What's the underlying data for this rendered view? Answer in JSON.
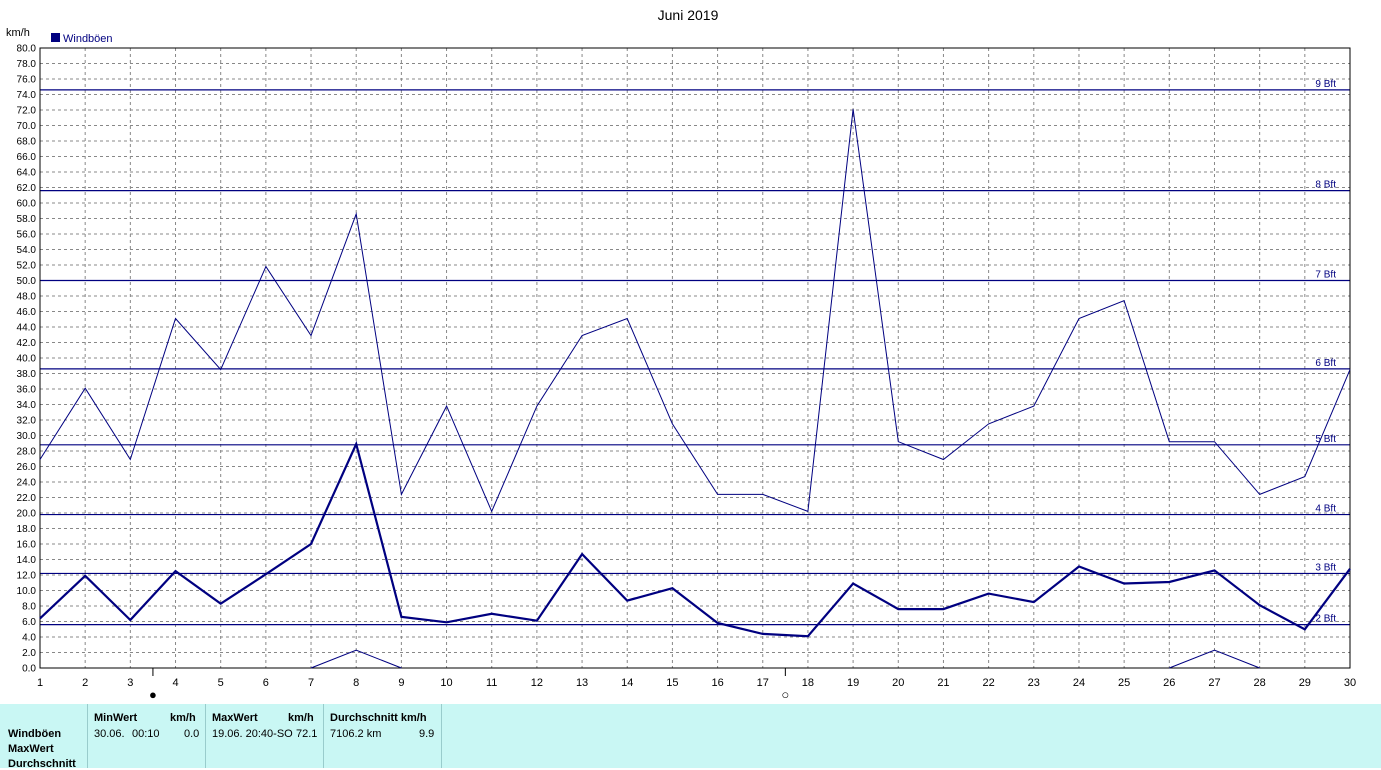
{
  "chart_data": {
    "type": "line",
    "title": "Juni 2019",
    "ylabel": "km/h",
    "legend": "Windböen",
    "ylim": [
      0,
      80
    ],
    "ytick_step": 2,
    "x": [
      1,
      2,
      3,
      4,
      5,
      6,
      7,
      8,
      9,
      10,
      11,
      12,
      13,
      14,
      15,
      16,
      17,
      18,
      19,
      20,
      21,
      22,
      23,
      24,
      25,
      26,
      27,
      28,
      29,
      30
    ],
    "series": [
      {
        "values": [
          26.9,
          36.1,
          26.9,
          45.1,
          38.5,
          51.8,
          42.9,
          58.6,
          22.4,
          33.8,
          20.2,
          33.8,
          42.9,
          45.1,
          31.5,
          22.4,
          22.4,
          20.2,
          72.1,
          29.2,
          26.9,
          31.5,
          33.8,
          45.1,
          47.4,
          29.2,
          29.2,
          22.4,
          24.7,
          38.5
        ]
      },
      {
        "values": [
          6.4,
          11.9,
          6.2,
          12.5,
          8.3,
          12.1,
          16.0,
          28.9,
          6.6,
          5.9,
          7.0,
          6.1,
          14.7,
          8.7,
          10.3,
          5.8,
          4.4,
          4.1,
          10.9,
          7.6,
          7.6,
          9.6,
          8.5,
          13.1,
          10.9,
          11.1,
          12.6,
          8.1,
          5.0,
          12.8
        ]
      },
      {
        "values": [
          null,
          null,
          null,
          null,
          null,
          null,
          0.0,
          2.3,
          0.0,
          null,
          null,
          null,
          null,
          null,
          null,
          null,
          null,
          null,
          null,
          null,
          null,
          null,
          null,
          null,
          null,
          0.0,
          2.3,
          0.0,
          null,
          null
        ]
      }
    ],
    "bft_lines": [
      {
        "label": "2 Bft",
        "value": 5.6
      },
      {
        "label": "3 Bft",
        "value": 12.2
      },
      {
        "label": "4 Bft",
        "value": 19.8
      },
      {
        "label": "5 Bft",
        "value": 28.8
      },
      {
        "label": "6 Bft",
        "value": 38.6
      },
      {
        "label": "7 Bft",
        "value": 50.0
      },
      {
        "label": "8 Bft",
        "value": 61.6
      },
      {
        "label": "9 Bft",
        "value": 74.6
      }
    ],
    "moon_phases": [
      {
        "day": 3.5,
        "symbol": "●"
      },
      {
        "day": 17.5,
        "symbol": "○"
      }
    ],
    "grid": true,
    "colors": {
      "series": "#000080",
      "bft": "#000080",
      "grid": "#888888"
    }
  },
  "stats": {
    "row_labels": [
      "Windböen",
      "MaxWert",
      "Durchschnitt"
    ],
    "min": {
      "header": "MinWert",
      "unit": "km/h",
      "date": "30.06.",
      "time": "00:10",
      "value": "0.0"
    },
    "max": {
      "header": "MaxWert",
      "unit": "km/h",
      "datetime": "19.06.  20:40-SO",
      "value": "72.1"
    },
    "avg": {
      "header": "Durchschnitt km/h",
      "distance": "7106.2 km",
      "value": "9.9"
    }
  }
}
